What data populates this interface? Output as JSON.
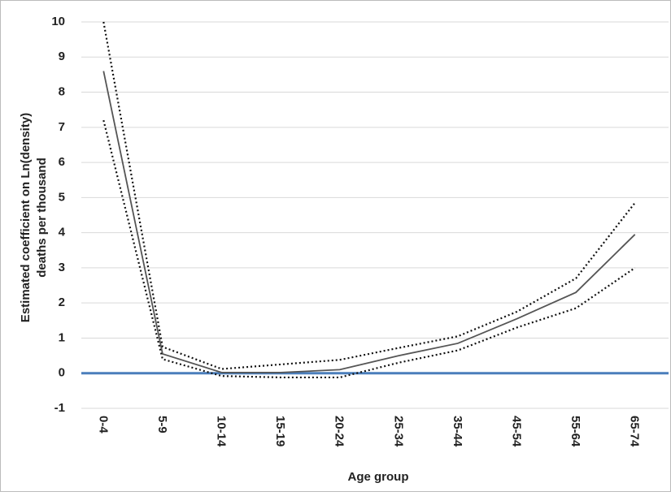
{
  "chart_data": {
    "type": "line",
    "y_label_lines": [
      "Estimated coefficient on Ln(density)",
      "deaths per thousand"
    ],
    "x_label": "Age group",
    "categories": [
      "0-4",
      "5-9",
      "10-14",
      "15-19",
      "20-24",
      "25-34",
      "35-44",
      "45-54",
      "55-64",
      "65-74"
    ],
    "series": [
      {
        "color": "#555555",
        "dash": false,
        "values": [
          8.6,
          0.55,
          0.02,
          0.02,
          0.1,
          0.5,
          0.85,
          1.55,
          2.3,
          3.95
        ]
      },
      {
        "color": "#111111",
        "dash": true,
        "values": [
          10.0,
          0.75,
          0.12,
          0.25,
          0.38,
          0.72,
          1.05,
          1.75,
          2.7,
          4.85
        ]
      },
      {
        "color": "#111111",
        "dash": true,
        "values": [
          7.2,
          0.4,
          -0.08,
          -0.12,
          -0.12,
          0.3,
          0.65,
          1.3,
          1.85,
          3.0
        ]
      }
    ],
    "ylim": [
      -1,
      10
    ],
    "yticks": [
      -1,
      0,
      1,
      2,
      3,
      4,
      5,
      6,
      7,
      8,
      9,
      10
    ],
    "grid": true,
    "zero_line_color": "#4a7ebb"
  }
}
